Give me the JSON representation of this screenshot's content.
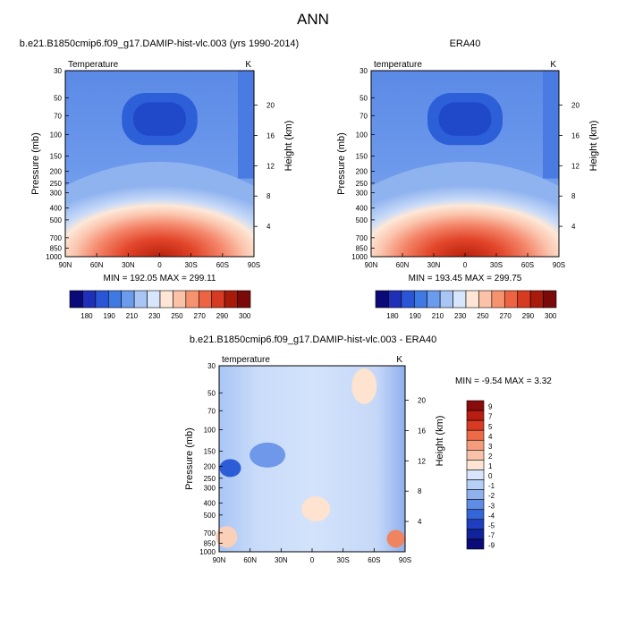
{
  "title": "ANN",
  "colors": {
    "cold_extreme": "#0a0a78",
    "cold": "#2459d6",
    "neutral_blue": "#cfe0fb",
    "neutral_warm": "#fde5d2",
    "warm": "#f07a52",
    "warm_extreme": "#7a0a0a"
  },
  "chart_data": [
    {
      "type": "heatmap",
      "title": "b.e21.B1850cmip6.f09_g17.DAMIP-hist-vlc.003 (yrs 1990-2014)",
      "subtitle_left": "Temperature",
      "subtitle_right": "K",
      "ylabel_left": "Pressure (mb)",
      "ylabel_right": "Height (km)",
      "x_ticks": [
        "90N",
        "60N",
        "30N",
        "0",
        "30S",
        "60S",
        "90S"
      ],
      "y_ticks": [
        "30",
        "50",
        "70",
        "100",
        "150",
        "200",
        "250",
        "300",
        "400",
        "500",
        "700",
        "850",
        "1000"
      ],
      "height_ticks": [
        "20",
        "16",
        "12",
        "8",
        "4"
      ],
      "stats": "MIN = 192.05   MAX = 299.11",
      "colorbar_labels": [
        "180",
        "190",
        "210",
        "230",
        "250",
        "270",
        "290",
        "300"
      ]
    },
    {
      "type": "heatmap",
      "title": "ERA40",
      "subtitle_left": "temperature",
      "subtitle_right": "K",
      "ylabel_left": "Pressure (mb)",
      "ylabel_right": "Height (km)",
      "x_ticks": [
        "90N",
        "60N",
        "30N",
        "0",
        "30S",
        "60S",
        "90S"
      ],
      "y_ticks": [
        "30",
        "50",
        "70",
        "100",
        "150",
        "200",
        "250",
        "300",
        "400",
        "500",
        "700",
        "850",
        "1000"
      ],
      "height_ticks": [
        "20",
        "16",
        "12",
        "8",
        "4"
      ],
      "stats": "MIN = 193.45   MAX = 299.75",
      "colorbar_labels": [
        "180",
        "190",
        "210",
        "230",
        "250",
        "270",
        "290",
        "300"
      ]
    },
    {
      "type": "heatmap",
      "title": "b.e21.B1850cmip6.f09_g17.DAMIP-hist-vlc.003 - ERA40",
      "subtitle_left": "temperature",
      "subtitle_right": "K",
      "ylabel_left": "Pressure (mb)",
      "ylabel_right": "Height (km)",
      "x_ticks": [
        "90N",
        "60N",
        "30N",
        "0",
        "30S",
        "60S",
        "90S"
      ],
      "y_ticks": [
        "30",
        "50",
        "70",
        "100",
        "150",
        "200",
        "250",
        "300",
        "400",
        "500",
        "700",
        "850",
        "1000"
      ],
      "height_ticks": [
        "20",
        "16",
        "12",
        "8",
        "4"
      ],
      "stats": "MIN =  -9.54   MAX =   3.32",
      "colorbar_labels": [
        "9",
        "7",
        "5",
        "4",
        "3",
        "2",
        "1",
        "0",
        "-1",
        "-2",
        "-3",
        "-4",
        "-5",
        "-7",
        "-9"
      ]
    }
  ]
}
